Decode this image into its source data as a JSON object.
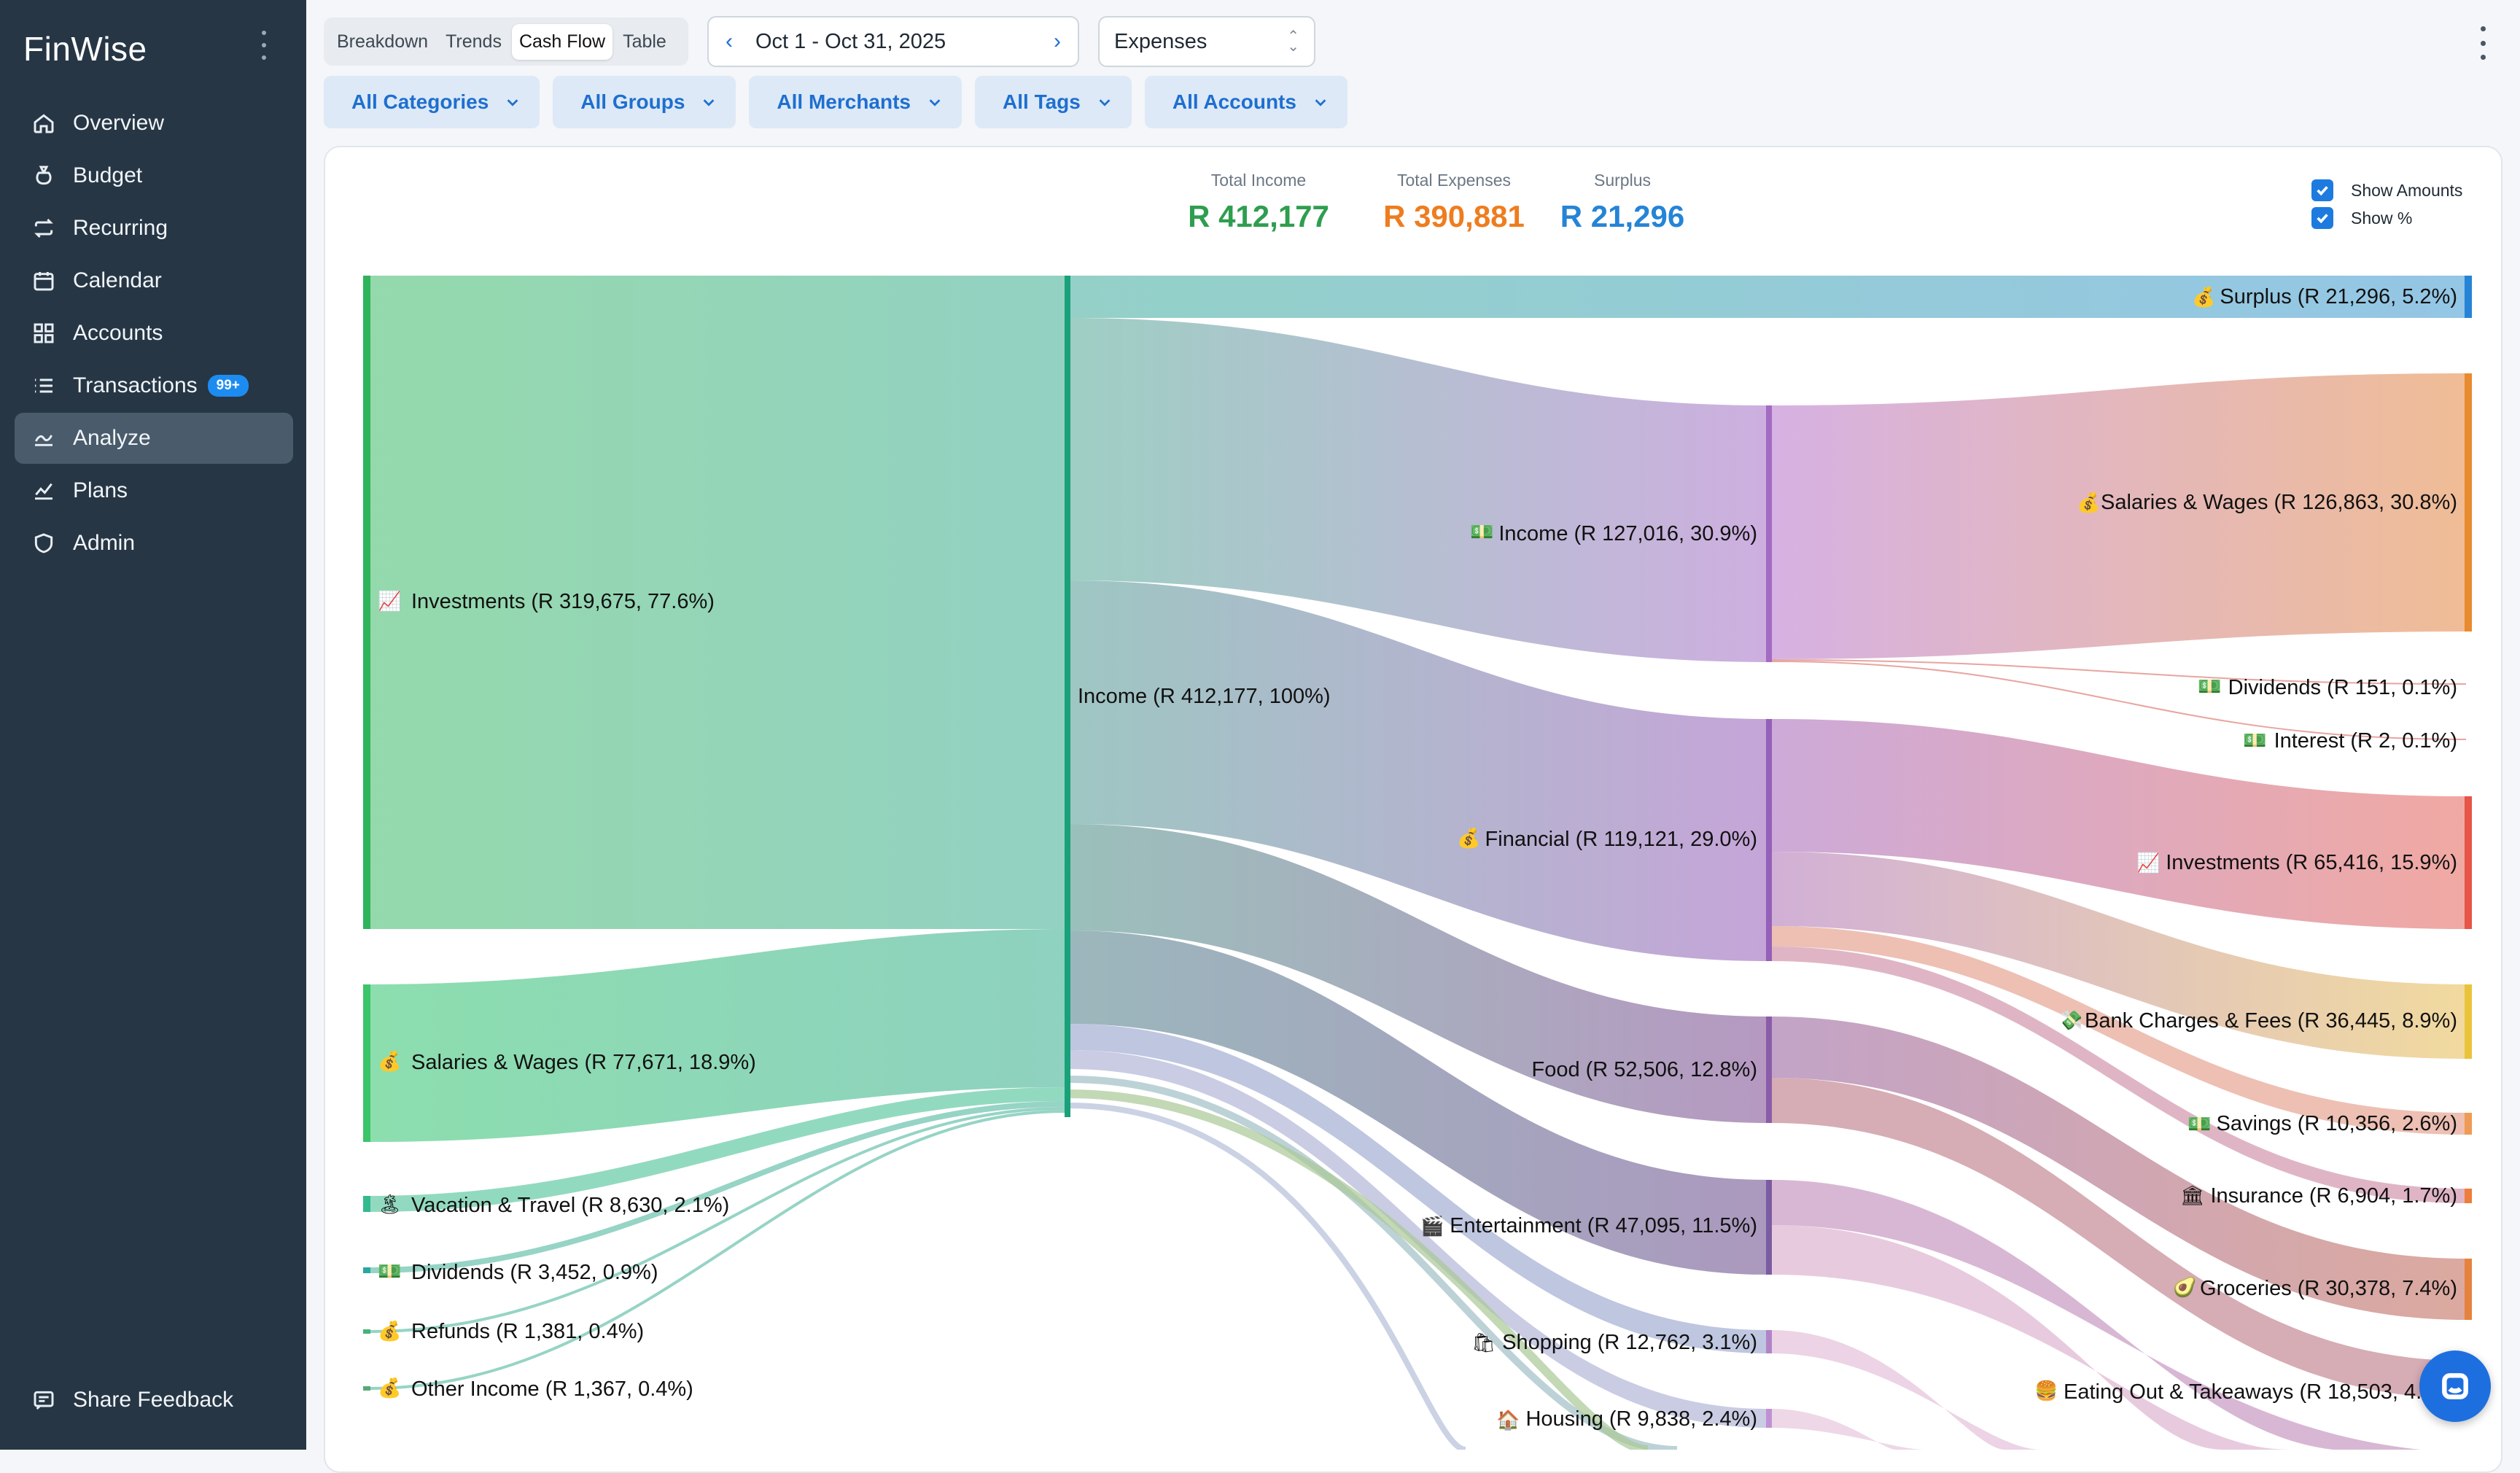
{
  "app": {
    "title": "FinWise"
  },
  "sidebar": {
    "items": [
      {
        "label": "Overview",
        "icon": "home-icon"
      },
      {
        "label": "Budget",
        "icon": "money-bag-icon"
      },
      {
        "label": "Recurring",
        "icon": "repeat-icon"
      },
      {
        "label": "Calendar",
        "icon": "calendar-icon"
      },
      {
        "label": "Accounts",
        "icon": "grid-icon"
      },
      {
        "label": "Transactions",
        "icon": "list-icon",
        "badge": "99+"
      },
      {
        "label": "Analyze",
        "icon": "analyze-icon",
        "active": true
      },
      {
        "label": "Plans",
        "icon": "plans-icon"
      },
      {
        "label": "Admin",
        "icon": "shield-icon"
      }
    ],
    "feedback_label": "Share Feedback"
  },
  "toolbar": {
    "views": [
      "Breakdown",
      "Trends",
      "Cash Flow",
      "Table"
    ],
    "active_view": "Cash Flow",
    "date_range": "Oct 1 - Oct 31, 2025",
    "type_select": "Expenses",
    "filters": [
      "All Categories",
      "All Groups",
      "All Merchants",
      "All Tags",
      "All Accounts"
    ]
  },
  "totals": {
    "income_label": "Total Income",
    "income_value": "R 412,177",
    "expenses_label": "Total Expenses",
    "expenses_value": "R 390,881",
    "surplus_label": "Surplus",
    "surplus_value": "R 21,296"
  },
  "toggles": {
    "show_amounts": "Show Amounts",
    "show_percent": "Show %"
  },
  "colors": {
    "income": "#2e9e4f",
    "expenses": "#ee7d1f",
    "surplus": "#2584d6",
    "accent": "#1d7be0",
    "sidebar": "#263645"
  },
  "sankey": {
    "labels": {
      "src_investments": "Investments (R 319,675, 77.6%)",
      "src_salaries": "Salaries & Wages (R 77,671, 18.9%)",
      "src_vacation": "Vacation & Travel (R 8,630, 2.1%)",
      "src_dividends": "Dividends (R 3,452, 0.9%)",
      "src_refunds": "Refunds (R 1,381, 0.4%)",
      "src_other": "Other Income (R 1,367, 0.4%)",
      "mid_income": "Income (R 412,177, 100%)",
      "grp_income": "Income (R 127,016, 30.9%)",
      "grp_financial": "Financial (R 119,121, 29.0%)",
      "grp_food": "Food (R 52,506, 12.8%)",
      "grp_entertainment": "Entertainment (R 47,095, 11.5%)",
      "grp_shopping": "Shopping (R 12,762, 3.1%)",
      "grp_housing": "Housing (R 9,838, 2.4%)",
      "dst_surplus": "Surplus (R 21,296, 5.2%)",
      "dst_salaries": "Salaries & Wages (R 126,863, 30.8%)",
      "dst_dividends": "Dividends (R 151, 0.1%)",
      "dst_interest": "Interest (R 2, 0.1%)",
      "dst_investments": "Investments (R 65,416, 15.9%)",
      "dst_bank": "Bank Charges & Fees (R 36,445, 8.9%)",
      "dst_savings": "Savings (R 10,356, 2.6%)",
      "dst_insurance": "Insurance (R 6,904, 1.7%)",
      "dst_groceries": "Groceries (R 30,378, 7.4%)",
      "dst_eating": "Eating Out & Takeaways (R 18,503, 4."
    }
  }
}
